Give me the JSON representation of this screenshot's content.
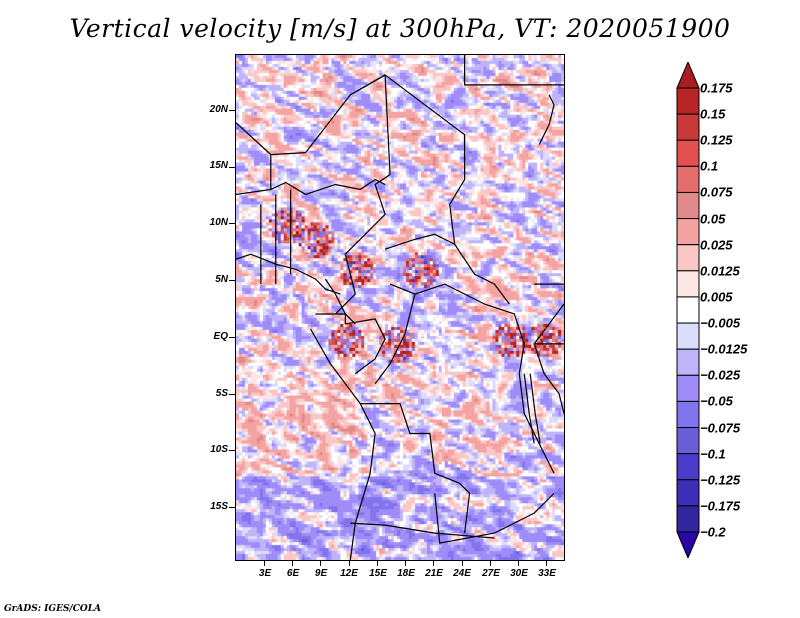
{
  "title": "Vertical velocity [m/s] at 300hPa, VT: 2020051900",
  "footer": "GrADS: IGES/COLA",
  "chart_data": {
    "type": "heatmap",
    "title": "Vertical velocity [m/s] at 300hPa, VT: 2020051900",
    "variable": "Vertical velocity",
    "units": "m/s",
    "level": "300hPa",
    "valid_time": "2020051900",
    "lon_range": [
      0,
      35
    ],
    "lat_range": [
      -20,
      25
    ],
    "lat_ticks": [
      {
        "value": 20,
        "label": "20N"
      },
      {
        "value": 15,
        "label": "15N"
      },
      {
        "value": 10,
        "label": "10N"
      },
      {
        "value": 5,
        "label": "5N"
      },
      {
        "value": 0,
        "label": "EQ"
      },
      {
        "value": -5,
        "label": "5S"
      },
      {
        "value": -10,
        "label": "10S"
      },
      {
        "value": -15,
        "label": "15S"
      }
    ],
    "lon_ticks": [
      {
        "value": 3,
        "label": "3E"
      },
      {
        "value": 6,
        "label": "6E"
      },
      {
        "value": 9,
        "label": "9E"
      },
      {
        "value": 12,
        "label": "12E"
      },
      {
        "value": 15,
        "label": "15E"
      },
      {
        "value": 18,
        "label": "18E"
      },
      {
        "value": 21,
        "label": "21E"
      },
      {
        "value": 24,
        "label": "24E"
      },
      {
        "value": 27,
        "label": "27E"
      },
      {
        "value": 30,
        "label": "30E"
      },
      {
        "value": 33,
        "label": "33E"
      }
    ],
    "colorbar": {
      "orientation": "vertical",
      "placement": "right",
      "extend": "both",
      "levels": [
        0.175,
        0.15,
        0.125,
        0.1,
        0.075,
        0.05,
        0.025,
        0.0125,
        0.005,
        -0.005,
        -0.0125,
        -0.025,
        -0.05,
        -0.075,
        -0.1,
        -0.125,
        -0.175,
        -0.2
      ],
      "level_labels": [
        "0.175",
        "0.15",
        "0.125",
        "0.1",
        "0.075",
        "0.05",
        "0.025",
        "0.0125",
        "0.005",
        "−0.005",
        "−0.0125",
        "−0.025",
        "−0.05",
        "−0.075",
        "−0.1",
        "−0.125",
        "−0.175",
        "−0.2"
      ],
      "colors_top_to_bottom": [
        "#a81f22",
        "#b82525",
        "#c83a3a",
        "#e25050",
        "#e46e6e",
        "#e28a8a",
        "#f4a3a3",
        "#fac6c6",
        "#fde6e6",
        "#ffffff",
        "#dcdcfc",
        "#bfb4fa",
        "#a08cf8",
        "#8274ec",
        "#6c5ed8",
        "#4c3ccb",
        "#3e2db8",
        "#33259f",
        "#2a07a6"
      ]
    }
  }
}
